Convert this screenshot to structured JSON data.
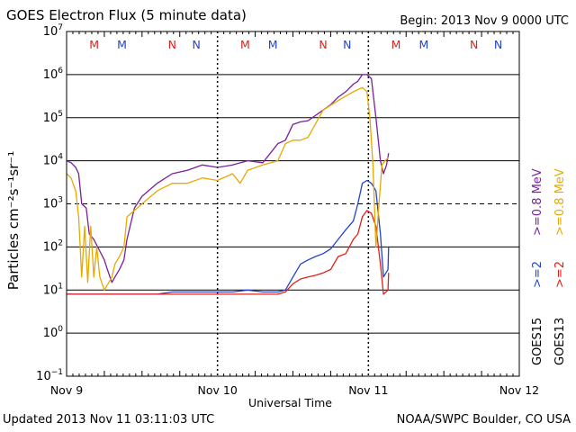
{
  "header": {
    "title": "GOES Electron Flux (5 minute data)",
    "begin": "Begin: 2013 Nov 9 0000 UTC"
  },
  "footer": {
    "updated": "Updated 2013 Nov 11 03:11:03 UTC",
    "credit": "NOAA/SWPC Boulder, CO USA"
  },
  "chart_data": {
    "type": "line",
    "title": "GOES Electron Flux (5 minute data)",
    "xlabel": "Universal Time",
    "ylabel": "Particles cm⁻²s⁻¹sr⁻¹",
    "x_unit": "days since 2013 Nov 9 0000 UTC",
    "xlim": [
      0,
      3
    ],
    "x_ticks": [
      {
        "x": 0,
        "label": "Nov 9"
      },
      {
        "x": 1,
        "label": "Nov 10"
      },
      {
        "x": 2,
        "label": "Nov 11"
      },
      {
        "x": 3,
        "label": "Nov 12"
      }
    ],
    "y_scale": "log",
    "ylim": [
      0.1,
      10000000
    ],
    "y_ticks": [
      {
        "value": 0.1,
        "base": "10",
        "exp": "−1"
      },
      {
        "value": 1,
        "base": "10",
        "exp": "0"
      },
      {
        "value": 10,
        "base": "10",
        "exp": "1"
      },
      {
        "value": 100,
        "base": "10",
        "exp": "2"
      },
      {
        "value": 1000,
        "base": "10",
        "exp": "3"
      },
      {
        "value": 10000,
        "base": "10",
        "exp": "4"
      },
      {
        "value": 100000,
        "base": "10",
        "exp": "5"
      },
      {
        "value": 1000000,
        "base": "10",
        "exp": "6"
      },
      {
        "value": 10000000,
        "base": "10",
        "exp": "7"
      }
    ],
    "dashed_threshold": 1000,
    "legend_placement": "right",
    "legend": {
      "groups": [
        {
          "label": "GOES15",
          "color": "#000000"
        },
        {
          "label": "GOES13",
          "color": "#000000"
        }
      ],
      "entries": [
        {
          "text": ">=2",
          "color": "#2244cc"
        },
        {
          "text": ">=0.8 MeV",
          "color": "#7a1fa0"
        },
        {
          "text": ">=2",
          "color": "#e0201a"
        },
        {
          "text": ">=0.8 MeV",
          "color": "#e8a800"
        }
      ]
    },
    "markers": [
      {
        "x": 0.183,
        "label": "M",
        "color": "#e0201a"
      },
      {
        "x": 0.367,
        "label": "M",
        "color": "#2244cc"
      },
      {
        "x": 0.7,
        "label": "N",
        "color": "#e0201a"
      },
      {
        "x": 0.86,
        "label": "N",
        "color": "#2244cc"
      },
      {
        "x": 1.183,
        "label": "M",
        "color": "#e0201a"
      },
      {
        "x": 1.367,
        "label": "M",
        "color": "#2244cc"
      },
      {
        "x": 1.7,
        "label": "N",
        "color": "#e0201a"
      },
      {
        "x": 1.86,
        "label": "N",
        "color": "#2244cc"
      },
      {
        "x": 2.183,
        "label": "M",
        "color": "#e0201a"
      },
      {
        "x": 2.367,
        "label": "M",
        "color": "#2244cc"
      },
      {
        "x": 2.7,
        "label": "N",
        "color": "#e0201a"
      },
      {
        "x": 2.86,
        "label": "N",
        "color": "#2244cc"
      }
    ],
    "series": [
      {
        "name": "GOES15 >=2",
        "color": "#2244cc",
        "x": [
          0,
          0.1,
          0.2,
          0.3,
          0.4,
          0.5,
          0.6,
          0.7,
          0.8,
          0.9,
          1.0,
          1.1,
          1.2,
          1.3,
          1.4,
          1.45,
          1.5,
          1.55,
          1.6,
          1.65,
          1.7,
          1.75,
          1.8,
          1.85,
          1.9,
          1.93,
          1.96,
          1.99,
          2.02,
          2.05,
          2.08,
          2.1,
          2.13,
          2.134
        ],
        "y": [
          8,
          8,
          8,
          8,
          8,
          8,
          8,
          9,
          9,
          9,
          9,
          9,
          10,
          9,
          9,
          10,
          20,
          40,
          50,
          60,
          70,
          90,
          150,
          250,
          400,
          1000,
          3000,
          3500,
          3000,
          2000,
          200,
          20,
          30,
          100
        ]
      },
      {
        "name": "GOES15 >=0.8 MeV",
        "color": "#7a1fa0",
        "x": [
          0,
          0.03,
          0.06,
          0.08,
          0.1,
          0.13,
          0.15,
          0.18,
          0.22,
          0.25,
          0.27,
          0.3,
          0.32,
          0.35,
          0.38,
          0.4,
          0.45,
          0.5,
          0.6,
          0.7,
          0.8,
          0.9,
          1.0,
          1.1,
          1.2,
          1.3,
          1.35,
          1.4,
          1.45,
          1.5,
          1.55,
          1.6,
          1.7,
          1.75,
          1.8,
          1.85,
          1.9,
          1.93,
          1.96,
          1.99,
          2.02,
          2.05,
          2.08,
          2.1,
          2.12,
          2.134
        ],
        "y": [
          10000,
          9000,
          7000,
          5000,
          1000,
          800,
          200,
          150,
          80,
          50,
          30,
          15,
          20,
          30,
          50,
          150,
          800,
          1500,
          3000,
          5000,
          6000,
          8000,
          7000,
          8000,
          10000,
          9000,
          15000,
          25000,
          30000,
          70000,
          80000,
          85000,
          150000,
          200000,
          300000,
          400000,
          600000,
          700000,
          1000000,
          1000000,
          800000,
          100000,
          10000,
          5000,
          8000,
          15000
        ]
      },
      {
        "name": "GOES13 >=2",
        "color": "#e0201a",
        "x": [
          0,
          0.1,
          0.2,
          0.3,
          0.4,
          0.5,
          0.6,
          0.7,
          0.8,
          0.9,
          1.0,
          1.1,
          1.2,
          1.3,
          1.4,
          1.45,
          1.5,
          1.55,
          1.6,
          1.65,
          1.7,
          1.75,
          1.8,
          1.85,
          1.9,
          1.93,
          1.96,
          1.99,
          2.02,
          2.05,
          2.08,
          2.1,
          2.13,
          2.134
        ],
        "y": [
          8,
          8,
          8,
          8,
          8,
          8,
          8,
          8,
          8,
          8,
          8,
          8,
          8,
          8,
          8,
          9,
          14,
          18,
          20,
          22,
          25,
          30,
          60,
          70,
          150,
          200,
          500,
          700,
          600,
          300,
          40,
          8,
          10,
          25
        ]
      },
      {
        "name": "GOES13 >=0.8 MeV",
        "color": "#e8a800",
        "x": [
          0,
          0.03,
          0.06,
          0.08,
          0.1,
          0.12,
          0.14,
          0.16,
          0.18,
          0.2,
          0.22,
          0.25,
          0.28,
          0.3,
          0.32,
          0.35,
          0.38,
          0.4,
          0.45,
          0.5,
          0.6,
          0.7,
          0.8,
          0.9,
          1.0,
          1.1,
          1.15,
          1.2,
          1.3,
          1.4,
          1.45,
          1.5,
          1.55,
          1.6,
          1.7,
          1.8,
          1.9,
          1.96,
          1.99,
          2.01,
          2.03,
          2.05,
          2.07,
          2.09,
          2.11,
          2.134
        ],
        "y": [
          5000,
          4000,
          2000,
          500,
          20,
          300,
          15,
          300,
          20,
          100,
          20,
          10,
          15,
          20,
          40,
          60,
          100,
          500,
          700,
          1000,
          2000,
          3000,
          3000,
          4000,
          3500,
          5000,
          3000,
          6000,
          8000,
          10000,
          25000,
          30000,
          30000,
          35000,
          150000,
          250000,
          400000,
          500000,
          400000,
          100000,
          8000,
          100,
          1000,
          8000,
          10000,
          12000
        ]
      }
    ]
  }
}
